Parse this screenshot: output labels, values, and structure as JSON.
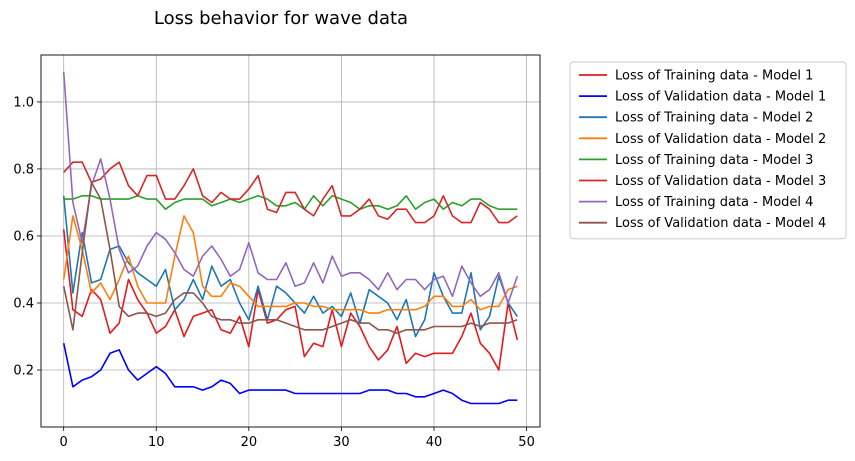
{
  "chart_data": {
    "type": "line",
    "title": "Loss behavior for wave data",
    "xlabel": "",
    "ylabel": "",
    "xlim": [
      -2.45,
      51.45
    ],
    "ylim": [
      0.03,
      1.14
    ],
    "xticks": [
      0,
      10,
      20,
      30,
      40,
      50
    ],
    "yticks": [
      0.2,
      0.4,
      0.6,
      0.8,
      1.0
    ],
    "ytick_labels": [
      "0.2",
      "0.4",
      "0.6",
      "0.8",
      "1.0"
    ],
    "grid": true,
    "legend_position": "outside-right",
    "x": [
      0,
      1,
      2,
      3,
      4,
      5,
      6,
      7,
      8,
      9,
      10,
      11,
      12,
      13,
      14,
      15,
      16,
      17,
      18,
      19,
      20,
      21,
      22,
      23,
      24,
      25,
      26,
      27,
      28,
      29,
      30,
      31,
      32,
      33,
      34,
      35,
      36,
      37,
      38,
      39,
      40,
      41,
      42,
      43,
      44,
      45,
      46,
      47,
      48,
      49
    ],
    "series": [
      {
        "name": "Loss of Training data - Model 1",
        "color": "#e41a1c",
        "values": [
          0.62,
          0.38,
          0.36,
          0.44,
          0.41,
          0.31,
          0.34,
          0.47,
          0.41,
          0.37,
          0.31,
          0.33,
          0.38,
          0.3,
          0.36,
          0.37,
          0.38,
          0.32,
          0.31,
          0.36,
          0.27,
          0.44,
          0.34,
          0.35,
          0.38,
          0.39,
          0.24,
          0.28,
          0.27,
          0.38,
          0.27,
          0.37,
          0.33,
          0.27,
          0.23,
          0.26,
          0.33,
          0.22,
          0.25,
          0.24,
          0.25,
          0.25,
          0.25,
          0.3,
          0.37,
          0.28,
          0.25,
          0.2,
          0.4,
          0.29
        ]
      },
      {
        "name": "Loss of Validation data - Model 1",
        "color": "#0000ff",
        "values": [
          0.28,
          0.15,
          0.17,
          0.18,
          0.2,
          0.25,
          0.26,
          0.2,
          0.17,
          0.19,
          0.21,
          0.19,
          0.15,
          0.15,
          0.15,
          0.14,
          0.15,
          0.17,
          0.16,
          0.13,
          0.14,
          0.14,
          0.14,
          0.14,
          0.14,
          0.13,
          0.13,
          0.13,
          0.13,
          0.13,
          0.13,
          0.13,
          0.13,
          0.14,
          0.14,
          0.14,
          0.13,
          0.13,
          0.12,
          0.12,
          0.13,
          0.14,
          0.13,
          0.11,
          0.1,
          0.1,
          0.1,
          0.1,
          0.11,
          0.11
        ]
      },
      {
        "name": "Loss of Training data - Model 2",
        "color": "#1f77b4",
        "values": [
          0.72,
          0.43,
          0.61,
          0.46,
          0.47,
          0.56,
          0.57,
          0.52,
          0.49,
          0.47,
          0.45,
          0.5,
          0.38,
          0.41,
          0.47,
          0.41,
          0.51,
          0.45,
          0.47,
          0.4,
          0.35,
          0.45,
          0.35,
          0.45,
          0.43,
          0.4,
          0.37,
          0.42,
          0.37,
          0.39,
          0.36,
          0.43,
          0.34,
          0.44,
          0.42,
          0.4,
          0.35,
          0.41,
          0.3,
          0.35,
          0.49,
          0.42,
          0.37,
          0.37,
          0.49,
          0.32,
          0.36,
          0.48,
          0.4,
          0.36
        ]
      },
      {
        "name": "Loss of Validation data - Model 2",
        "color": "#ff7f0e",
        "values": [
          0.47,
          0.66,
          0.56,
          0.43,
          0.46,
          0.41,
          0.47,
          0.54,
          0.45,
          0.4,
          0.4,
          0.4,
          0.54,
          0.66,
          0.61,
          0.45,
          0.42,
          0.42,
          0.46,
          0.45,
          0.42,
          0.39,
          0.39,
          0.39,
          0.39,
          0.4,
          0.4,
          0.39,
          0.39,
          0.38,
          0.38,
          0.38,
          0.38,
          0.37,
          0.37,
          0.38,
          0.38,
          0.38,
          0.38,
          0.39,
          0.42,
          0.42,
          0.39,
          0.39,
          0.41,
          0.38,
          0.39,
          0.39,
          0.44,
          0.45
        ]
      },
      {
        "name": "Loss of Training data - Model 3",
        "color": "#2ca02c",
        "values": [
          0.71,
          0.71,
          0.72,
          0.72,
          0.71,
          0.71,
          0.71,
          0.71,
          0.72,
          0.71,
          0.71,
          0.68,
          0.7,
          0.71,
          0.71,
          0.71,
          0.69,
          0.7,
          0.71,
          0.7,
          0.71,
          0.72,
          0.71,
          0.69,
          0.69,
          0.7,
          0.68,
          0.72,
          0.69,
          0.72,
          0.71,
          0.7,
          0.68,
          0.69,
          0.69,
          0.68,
          0.69,
          0.72,
          0.68,
          0.7,
          0.71,
          0.68,
          0.7,
          0.69,
          0.71,
          0.71,
          0.69,
          0.68,
          0.68,
          0.68
        ]
      },
      {
        "name": "Loss of Validation data - Model 3",
        "color": "#d62728",
        "values": [
          0.79,
          0.82,
          0.82,
          0.76,
          0.77,
          0.8,
          0.82,
          0.75,
          0.72,
          0.78,
          0.78,
          0.71,
          0.71,
          0.75,
          0.8,
          0.72,
          0.7,
          0.73,
          0.71,
          0.71,
          0.74,
          0.78,
          0.68,
          0.67,
          0.73,
          0.73,
          0.68,
          0.66,
          0.71,
          0.75,
          0.66,
          0.66,
          0.68,
          0.71,
          0.66,
          0.65,
          0.68,
          0.68,
          0.64,
          0.64,
          0.66,
          0.72,
          0.66,
          0.64,
          0.64,
          0.7,
          0.68,
          0.64,
          0.64,
          0.66
        ]
      },
      {
        "name": "Loss of Training data - Model 4",
        "color": "#9467bd",
        "values": [
          1.09,
          0.7,
          0.58,
          0.75,
          0.83,
          0.71,
          0.56,
          0.49,
          0.51,
          0.57,
          0.61,
          0.59,
          0.55,
          0.5,
          0.48,
          0.54,
          0.57,
          0.53,
          0.48,
          0.5,
          0.58,
          0.49,
          0.47,
          0.47,
          0.52,
          0.45,
          0.46,
          0.52,
          0.46,
          0.54,
          0.48,
          0.49,
          0.49,
          0.47,
          0.44,
          0.49,
          0.44,
          0.47,
          0.47,
          0.44,
          0.47,
          0.48,
          0.42,
          0.51,
          0.46,
          0.42,
          0.44,
          0.49,
          0.4,
          0.48
        ]
      },
      {
        "name": "Loss of Validation data - Model 4",
        "color": "#8c564b",
        "values": [
          0.45,
          0.32,
          0.55,
          0.76,
          0.71,
          0.56,
          0.39,
          0.36,
          0.37,
          0.37,
          0.36,
          0.37,
          0.41,
          0.43,
          0.43,
          0.4,
          0.36,
          0.35,
          0.35,
          0.34,
          0.34,
          0.35,
          0.35,
          0.35,
          0.34,
          0.33,
          0.32,
          0.32,
          0.32,
          0.33,
          0.34,
          0.35,
          0.34,
          0.34,
          0.32,
          0.32,
          0.31,
          0.32,
          0.32,
          0.32,
          0.33,
          0.33,
          0.33,
          0.33,
          0.34,
          0.33,
          0.34,
          0.34,
          0.34,
          0.35
        ]
      }
    ]
  }
}
